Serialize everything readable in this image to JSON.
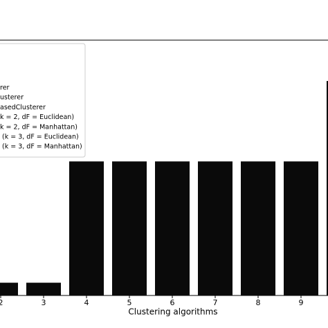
{
  "chart_data": {
    "type": "bar",
    "x_label": "Clustering algorithms",
    "categories": [
      "2",
      "3",
      "4",
      "5",
      "6",
      "7",
      "8",
      "9",
      null
    ],
    "values": [
      1,
      1,
      10.5,
      10.5,
      10.5,
      10.5,
      10.5,
      10.5,
      16.8
    ],
    "color": "#0a0a0a",
    "ylim": [
      0,
      20
    ],
    "legend": [
      "rer",
      "usterer",
      "asedClusterer",
      "k = 2, dF = Euclidean)",
      "k = 2, dF = Manhattan)",
      "(k = 3, dF = Euclidean)",
      "(k = 3, dF = Manhattan)"
    ]
  }
}
